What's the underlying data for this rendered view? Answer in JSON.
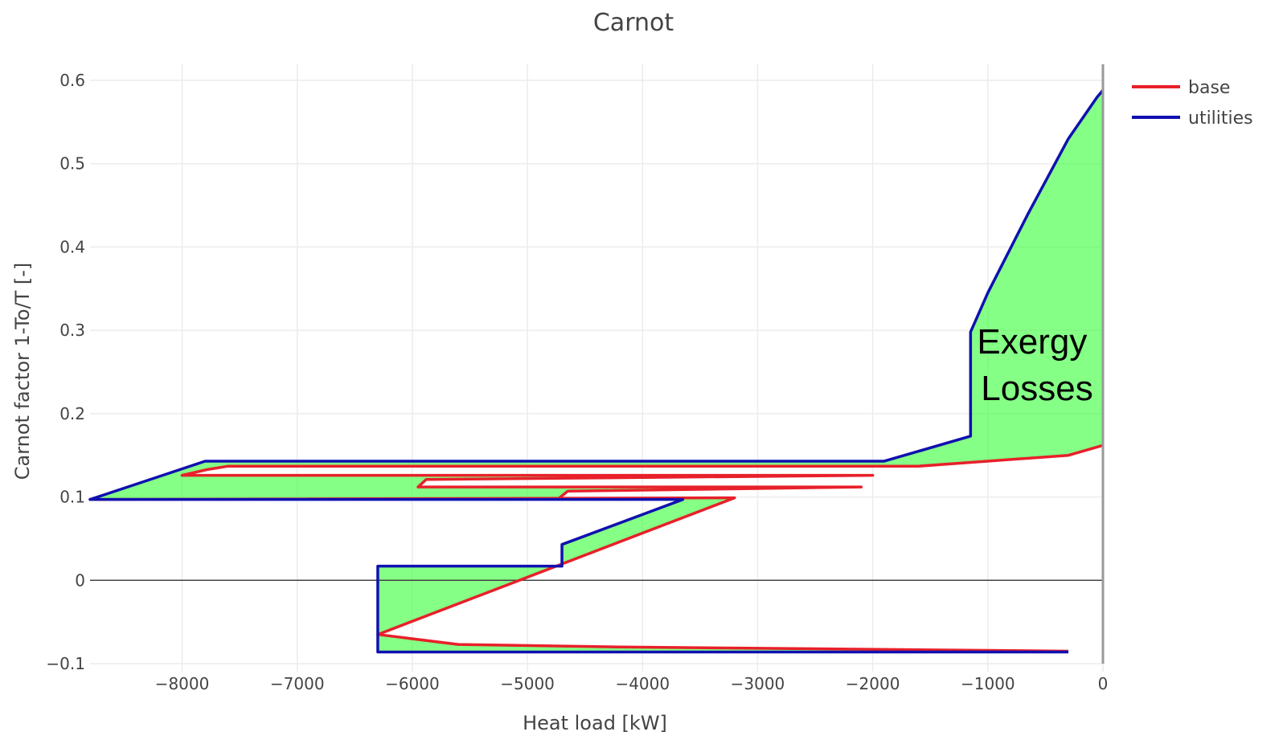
{
  "chart_data": {
    "type": "line",
    "title": "Carnot",
    "xlabel": "Heat load [kW]",
    "ylabel": "Carnot factor 1-To/T [-]",
    "xlim": [
      -8800,
      0
    ],
    "ylim": [
      -0.1,
      0.6
    ],
    "x_ticks": [
      -8000,
      -7000,
      -6000,
      -5000,
      -4000,
      -3000,
      -2000,
      -1000,
      0
    ],
    "x_tick_labels": [
      "−8000",
      "−7000",
      "−6000",
      "−5000",
      "−4000",
      "−3000",
      "−2000",
      "−1000",
      "0"
    ],
    "y_ticks": [
      -0.1,
      0,
      0.1,
      0.2,
      0.3,
      0.4,
      0.5,
      0.6
    ],
    "y_tick_labels": [
      "−0.1",
      "0",
      "0.1",
      "0.2",
      "0.3",
      "0.4",
      "0.5",
      "0.6"
    ],
    "grid": true,
    "legend_position": "top-right",
    "annotation": "Exergy\nLosses",
    "fill_color": "#33ff33",
    "series": [
      {
        "name": "base",
        "color": "#e8202a",
        "x": [
          0,
          -300,
          -1100,
          -1600,
          -7600,
          -7780,
          -8000,
          -2000,
          -5880,
          -5950,
          -2100,
          -4650,
          -4730,
          -8800,
          -3200,
          -6300,
          -5600,
          -4200,
          -300
        ],
        "y": [
          0.162,
          0.15,
          0.142,
          0.137,
          0.137,
          0.133,
          0.126,
          0.126,
          0.121,
          0.112,
          0.112,
          0.107,
          0.098,
          0.097,
          0.099,
          -0.065,
          -0.077,
          -0.08,
          -0.085
        ]
      },
      {
        "name": "utilities",
        "color": "#1010b0",
        "x": [
          0,
          -50,
          -300,
          -650,
          -1000,
          -1150,
          -1150,
          -1900,
          -7800,
          -8800,
          -3650,
          -4700,
          -4700,
          -6300,
          -6300,
          -6300,
          -300
        ],
        "y": [
          0.588,
          0.58,
          0.53,
          0.44,
          0.345,
          0.298,
          0.173,
          0.143,
          0.143,
          0.097,
          0.097,
          0.043,
          0.017,
          0.017,
          -0.065,
          -0.086,
          -0.086
        ]
      }
    ]
  }
}
